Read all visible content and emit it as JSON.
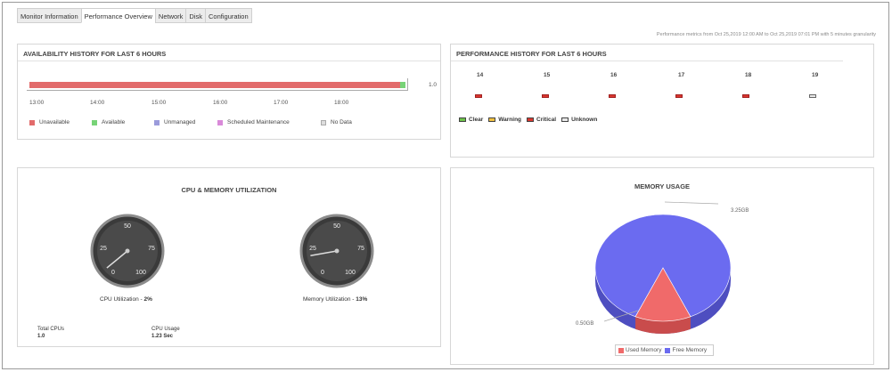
{
  "tabs": [
    {
      "label": "Monitor Information",
      "active": false
    },
    {
      "label": "Performance Overview",
      "active": true
    },
    {
      "label": "Network",
      "active": false
    },
    {
      "label": "Disk",
      "active": false
    },
    {
      "label": "Configuration",
      "active": false
    }
  ],
  "granularity_note": "Performance metrics from Oct 25,2019 12:00 AM to Oct 25,2019 07:01 PM with 5 minutes granularity",
  "availability": {
    "title": "AVAILABILITY HISTORY FOR LAST 6 HOURS",
    "value_label": "1.0",
    "times": [
      "13:00",
      "14:00",
      "15:00",
      "16:00",
      "17:00",
      "18:00"
    ],
    "legend": [
      {
        "label": "Unavailable",
        "color": "#e26b6b"
      },
      {
        "label": "Available",
        "color": "#77d377"
      },
      {
        "label": "Unmanaged",
        "color": "#9b9bdb"
      },
      {
        "label": "Scheduled Maintenance",
        "color": "#d98ad9"
      },
      {
        "label": "No Data",
        "color": "#dddddd"
      }
    ],
    "unavailable_fraction": 0.985,
    "available_fraction": 0.015
  },
  "performance": {
    "title": "PERFORMANCE HISTORY FOR LAST 6 HOURS",
    "hours": [
      {
        "label": "14",
        "status": "critical"
      },
      {
        "label": "15",
        "status": "critical"
      },
      {
        "label": "16",
        "status": "critical"
      },
      {
        "label": "17",
        "status": "critical"
      },
      {
        "label": "18",
        "status": "critical"
      },
      {
        "label": "19",
        "status": "unknown"
      }
    ],
    "legend": [
      {
        "label": "Clear",
        "color": "#6cc24a"
      },
      {
        "label": "Warning",
        "color": "#f0c040"
      },
      {
        "label": "Critical",
        "color": "#d9362f"
      },
      {
        "label": "Unknown",
        "color": "#e8e8e8"
      }
    ]
  },
  "cpu_memory": {
    "title": "CPU & MEMORY UTILIZATION",
    "gauge_ticks": [
      "0",
      "25",
      "50",
      "75",
      "100"
    ],
    "cpu": {
      "caption": "CPU Utilization - ",
      "value": "2%",
      "percent": 2
    },
    "memory": {
      "caption": "Memory Utilization - ",
      "value": "13%",
      "percent": 13
    },
    "total_cpus_label": "Total CPUs",
    "total_cpus_value": "1.0",
    "cpu_usage_label": "CPU Usage",
    "cpu_usage_value": "1.23 Sec"
  },
  "memory_usage": {
    "title": "MEMORY USAGE",
    "free_label": "3.25GB",
    "used_label": "0.50GB",
    "legend": [
      {
        "label": "Used Memory",
        "color": "#f06a6a"
      },
      {
        "label": "Free Memory",
        "color": "#6b6bf0"
      }
    ],
    "chart_data": {
      "type": "pie",
      "categories": [
        "Used Memory",
        "Free Memory"
      ],
      "values": [
        0.5,
        3.25
      ]
    }
  }
}
